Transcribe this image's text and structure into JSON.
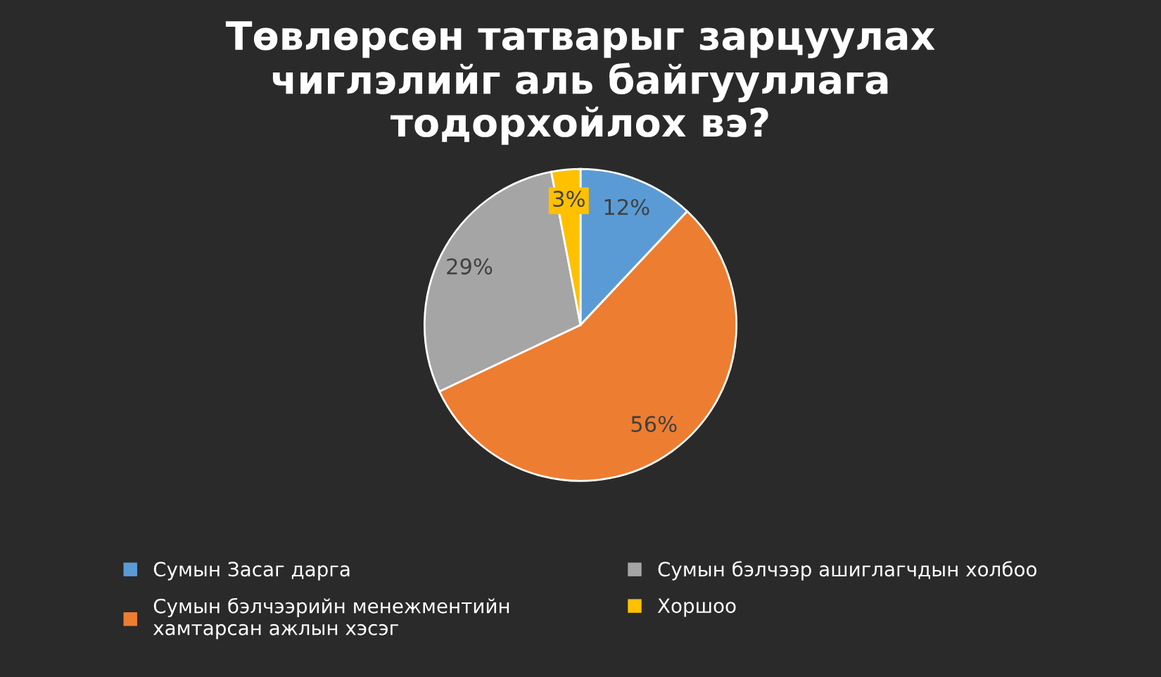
{
  "chart_data": {
    "type": "pie",
    "title": "Төвлөрсөн татварыг зарцуулах\nчиглэлийг аль байгууллага\nтодорхойлох вэ?",
    "categories": [
      "Сумын Засаг дарга",
      "Сумын бэлчээрийн менежментийн\nхамтарсан ажлын хэсэг",
      "Сумын бэлчээр ашиглагчдын холбоо",
      "Хоршоо"
    ],
    "values": [
      12,
      56,
      29,
      3
    ],
    "colors": [
      "#5b9bd5",
      "#ed7d31",
      "#a5a5a5",
      "#ffc000"
    ],
    "value_labels": [
      "12%",
      "56%",
      "29%",
      "3%"
    ],
    "legend": "bottom"
  }
}
